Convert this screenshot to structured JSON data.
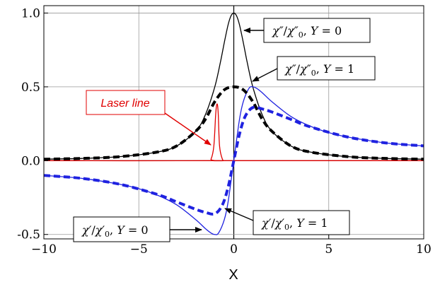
{
  "chart_data": {
    "type": "line",
    "xlabel": "X",
    "ylabel": "",
    "xlim": [
      -10,
      10
    ],
    "ylim": [
      -0.53,
      1.05
    ],
    "grid": true,
    "x_ticks": [
      {
        "value": -10,
        "label": "−10"
      },
      {
        "value": -5,
        "label": "−5"
      },
      {
        "value": 0,
        "label": "0"
      },
      {
        "value": 5,
        "label": "5"
      },
      {
        "value": 10,
        "label": "10"
      }
    ],
    "y_ticks": [
      {
        "value": -0.5,
        "label": "-0.5"
      },
      {
        "value": 0,
        "label": "0.0"
      },
      {
        "value": 0.5,
        "label": "0.5"
      },
      {
        "value": 1,
        "label": "1.0"
      }
    ],
    "series": [
      {
        "key": "abs_y0",
        "color": "#000000",
        "dash": "solid",
        "x": [
          -10,
          -8,
          -6,
          -4,
          -3,
          -2,
          -1.5,
          -1,
          -0.7,
          -0.5,
          -0.3,
          -0.15,
          0,
          0.15,
          0.3,
          0.5,
          0.7,
          1,
          1.5,
          2,
          3,
          4,
          6,
          8,
          10
        ],
        "y": [
          0.01,
          0.015,
          0.027,
          0.059,
          0.1,
          0.2,
          0.31,
          0.5,
          0.67,
          0.8,
          0.92,
          0.98,
          1.0,
          0.98,
          0.92,
          0.8,
          0.67,
          0.5,
          0.31,
          0.2,
          0.1,
          0.059,
          0.027,
          0.015,
          0.01
        ]
      },
      {
        "key": "abs_y1",
        "color": "#000000",
        "dash": "dashed",
        "x": [
          -10,
          -8,
          -6,
          -4,
          -3,
          -2,
          -1.5,
          -1,
          -0.5,
          0,
          0.5,
          1,
          1.5,
          2,
          3,
          4,
          6,
          8,
          10
        ],
        "y": [
          0.01,
          0.015,
          0.027,
          0.059,
          0.1,
          0.2,
          0.28,
          0.4,
          0.48,
          0.5,
          0.48,
          0.4,
          0.28,
          0.2,
          0.1,
          0.059,
          0.027,
          0.015,
          0.01
        ]
      },
      {
        "key": "disp_y0",
        "color": "#1f22e0",
        "dash": "solid",
        "x": [
          -10,
          -8,
          -6,
          -5,
          -4,
          -3,
          -2,
          -1.5,
          -1.2,
          -1,
          -0.8,
          -0.5,
          -0.3,
          0,
          0.3,
          0.5,
          0.8,
          1,
          1.2,
          1.5,
          2,
          3,
          4,
          5,
          6,
          8,
          10
        ],
        "y": [
          -0.1,
          -0.12,
          -0.16,
          -0.19,
          -0.235,
          -0.3,
          -0.4,
          -0.46,
          -0.49,
          -0.5,
          -0.49,
          -0.4,
          -0.28,
          0,
          0.28,
          0.4,
          0.49,
          0.5,
          0.49,
          0.46,
          0.4,
          0.3,
          0.235,
          0.19,
          0.16,
          0.12,
          0.1
        ]
      },
      {
        "key": "disp_y1",
        "color": "#1f22e0",
        "dash": "dashed",
        "x": [
          -10,
          -8,
          -6,
          -4,
          -3,
          -2,
          -1.5,
          -1,
          -0.6,
          -0.3,
          0,
          0.3,
          0.6,
          1,
          1.5,
          2,
          3,
          4,
          6,
          8,
          10
        ],
        "y": [
          -0.1,
          -0.12,
          -0.16,
          -0.23,
          -0.28,
          -0.33,
          -0.35,
          -0.36,
          -0.3,
          -0.18,
          0,
          0.18,
          0.3,
          0.36,
          0.35,
          0.33,
          0.28,
          0.23,
          0.16,
          0.12,
          0.1
        ]
      },
      {
        "key": "laser",
        "color": "#e00000",
        "dash": "solid",
        "x": [
          -10,
          -1.4,
          -1.2,
          -1.05,
          -0.95,
          -0.88,
          -0.82,
          -0.75,
          -0.6,
          -0.45,
          -0.3,
          10
        ],
        "y": [
          0,
          0,
          0.01,
          0.1,
          0.32,
          0.385,
          0.32,
          0.1,
          0.01,
          0,
          0,
          0
        ]
      }
    ],
    "annotations": [
      {
        "key": "ann_abs_y0",
        "symbol": "χ″",
        "sub": "0",
        "tail": ", ",
        "var": "Y",
        "eq": " = 0"
      },
      {
        "key": "ann_abs_y1",
        "symbol": "χ″",
        "sub": "0",
        "tail": ", ",
        "var": "Y",
        "eq": " = 1"
      },
      {
        "key": "ann_laser",
        "text": "Laser line"
      },
      {
        "key": "ann_disp_y0",
        "symbol": "χ′",
        "sub": "0",
        "tail": ", ",
        "var": "Y",
        "eq": " = 0"
      },
      {
        "key": "ann_disp_y1",
        "symbol": "χ′",
        "sub": "0",
        "tail": ", ",
        "var": "Y",
        "eq": " = 1"
      }
    ]
  }
}
